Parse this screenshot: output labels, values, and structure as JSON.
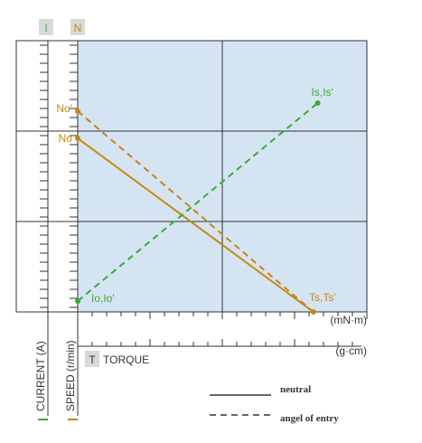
{
  "axis_tags": {
    "current": "I",
    "speed": "N"
  },
  "axis_titles": {
    "current": "CURRENT (A)",
    "speed": "SPEED (r/min)",
    "torque": "TORQUE",
    "torque_tag": "T"
  },
  "units": {
    "torque_mn_m": "(mN·m)",
    "torque_g_cm": "(g·cm)"
  },
  "legend": {
    "solid": "neutral",
    "dashed": "angel of entry"
  },
  "colors": {
    "current": "#3aaa35",
    "speed": "#c8860f",
    "plot_bg": "#d5e4f3",
    "grid": "#333333",
    "tag_bg": "#d9d9d9",
    "legend_line": "#333333"
  },
  "chart_data": {
    "type": "line",
    "xlabel": "TORQUE",
    "x_units": [
      "(mN·m)",
      "(g·cm)"
    ],
    "xlim": [
      0,
      1
    ],
    "ylim": [
      0,
      1
    ],
    "grid": true,
    "legend_position": "bottom-right",
    "series": [
      {
        "name": "neutral",
        "quantity": "speed",
        "style": "solid",
        "color": "#c8860f",
        "x": [
          0,
          0.815
        ],
        "y": [
          0.64,
          0
        ],
        "labels": [
          "No",
          "Ts,Ts'"
        ]
      },
      {
        "name": "angel of entry",
        "quantity": "speed",
        "style": "dashed",
        "color": "#c8860f",
        "x": [
          0,
          0.815
        ],
        "y": [
          0.74,
          0
        ],
        "labels": [
          "No'",
          ""
        ]
      },
      {
        "name": "angel of entry",
        "quantity": "current",
        "style": "dashed",
        "color": "#3aaa35",
        "x": [
          0,
          0.83
        ],
        "y": [
          0.04,
          0.77
        ],
        "labels": [
          "Io,Io'",
          "Is,Is'"
        ]
      }
    ]
  }
}
